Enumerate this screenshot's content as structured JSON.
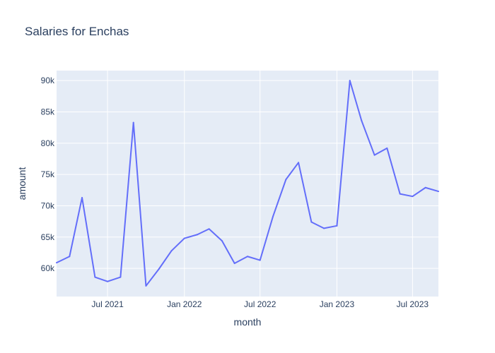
{
  "chart_data": {
    "type": "line",
    "title": "Salaries for Enchas",
    "xlabel": "month",
    "ylabel": "amount",
    "x_axis_type": "date",
    "x_range": [
      "2021-03-01",
      "2023-09-01"
    ],
    "y_range": [
      55500,
      91600
    ],
    "grid": true,
    "legend": "none",
    "x_tick_values": [
      "2021-07-01",
      "2022-01-01",
      "2022-07-01",
      "2023-01-01",
      "2023-07-01"
    ],
    "x_tick_labels": [
      "Jul 2021",
      "Jan 2022",
      "Jul 2022",
      "Jan 2023",
      "Jul 2023"
    ],
    "y_tick_values": [
      60000,
      65000,
      70000,
      75000,
      80000,
      85000,
      90000
    ],
    "y_tick_labels": [
      "60k",
      "65k",
      "70k",
      "75k",
      "80k",
      "85k",
      "90k"
    ],
    "series": [
      {
        "x": [
          "2021-03-01",
          "2021-04-01",
          "2021-05-01",
          "2021-06-01",
          "2021-07-01",
          "2021-08-01",
          "2021-09-01",
          "2021-10-01",
          "2021-11-01",
          "2021-12-01",
          "2022-01-01",
          "2022-02-01",
          "2022-03-01",
          "2022-04-01",
          "2022-05-01",
          "2022-06-01",
          "2022-07-01",
          "2022-08-01",
          "2022-09-01",
          "2022-10-01",
          "2022-11-01",
          "2022-12-01",
          "2023-01-01",
          "2023-02-01",
          "2023-03-01",
          "2023-04-01",
          "2023-05-01",
          "2023-06-01",
          "2023-07-01",
          "2023-08-01",
          "2023-09-01"
        ],
        "y": [
          60900,
          61900,
          71300,
          58600,
          57900,
          58600,
          83300,
          57200,
          59900,
          62800,
          64800,
          65400,
          66300,
          64400,
          60800,
          61900,
          61300,
          68300,
          74200,
          76900,
          67400,
          66400,
          66800,
          90000,
          83600,
          78100,
          79200,
          71900,
          71500,
          72900,
          72300
        ],
        "color": "#636efa"
      }
    ]
  },
  "colors": {
    "plot_background": "#e5ecf6",
    "grid": "#ffffff",
    "text": "#2a3f5f",
    "series": "#636efa"
  }
}
